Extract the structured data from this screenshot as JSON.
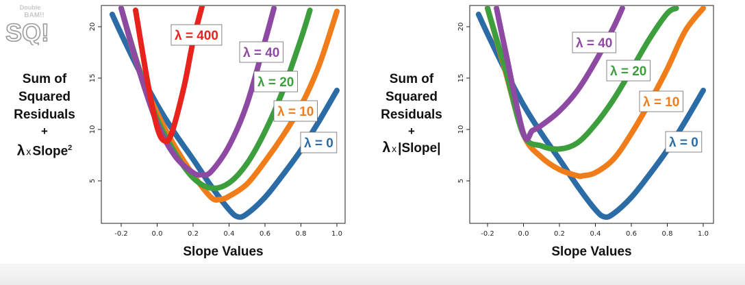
{
  "logo": {
    "line1": "Double",
    "line2": "BAM!!",
    "mark": "SQ!"
  },
  "panels": [
    {
      "ylabel": {
        "l1": "Sum of",
        "l2": "Squared",
        "l3": "Residuals",
        "plus": "+",
        "lambda": "λ",
        "times": "x",
        "slope": "Slope",
        "power": "2"
      }
    },
    {
      "ylabel": {
        "l1": "Sum of",
        "l2": "Squared",
        "l3": "Residuals",
        "plus": "+",
        "lambda": "λ",
        "times": "x",
        "slope": "|Slope|",
        "power": ""
      }
    }
  ],
  "chart_data": [
    {
      "type": "line",
      "penalty": "squared",
      "title": "",
      "xlabel": "Slope Values",
      "xlim": [
        -0.3,
        1.05
      ],
      "ylim": [
        0.5,
        21.5
      ],
      "xticks": [
        "-0.2",
        "0.0",
        "0.2",
        "0.4",
        "0.6",
        "0.8",
        "1.0"
      ],
      "yticks": [
        "5",
        "10",
        "15",
        "20"
      ],
      "series": [
        {
          "name": "λ = 0",
          "lambda": 0,
          "color": "#2b6ca6",
          "x": [
            -0.25,
            -0.2,
            -0.1,
            0,
            0.1,
            0.2,
            0.3,
            0.4,
            0.45,
            0.5,
            0.6,
            0.7,
            0.8,
            0.9,
            1.0
          ],
          "y": [
            21.2,
            19.3,
            15.7,
            12.4,
            9.6,
            7.1,
            4.5,
            2.2,
            1.5,
            1.8,
            3.4,
            5.6,
            8.0,
            10.8,
            13.8
          ]
        },
        {
          "name": "λ = 10",
          "lambda": 10,
          "color": "#f07d1a",
          "x": [
            -0.2,
            -0.1,
            0,
            0.1,
            0.2,
            0.3,
            0.35,
            0.4,
            0.5,
            0.6,
            0.7,
            0.8,
            0.9,
            1.0
          ],
          "y": [
            21.8,
            15.7,
            11.6,
            8.3,
            5.6,
            3.4,
            3.2,
            3.5,
            4.7,
            6.9,
            9.4,
            12.3,
            16.2,
            21.5
          ]
        },
        {
          "name": "λ = 20",
          "lambda": 20,
          "color": "#3c9e3c",
          "x": [
            -0.2,
            -0.1,
            0,
            0.1,
            0.2,
            0.3,
            0.4,
            0.5,
            0.6,
            0.7,
            0.8,
            0.85
          ],
          "y": [
            21.8,
            15.9,
            11.0,
            7.7,
            5.3,
            4.3,
            4.8,
            6.7,
            9.8,
            13.8,
            18.8,
            21.6
          ]
        },
        {
          "name": "λ = 40",
          "lambda": 40,
          "color": "#8e4aa3",
          "x": [
            -0.2,
            -0.1,
            0,
            0.1,
            0.2,
            0.25,
            0.3,
            0.4,
            0.5,
            0.6,
            0.65
          ],
          "y": [
            21.8,
            15.7,
            10.6,
            7.4,
            5.8,
            5.6,
            5.9,
            8.4,
            12.5,
            18.6,
            21.8
          ]
        },
        {
          "name": "λ = 400",
          "lambda": 400,
          "color": "#e8231e",
          "x": [
            -0.12,
            -0.05,
            0,
            0.04,
            0.08,
            0.15,
            0.2,
            0.25
          ],
          "y": [
            21.6,
            14.3,
            10.2,
            8.9,
            9.6,
            14.2,
            18.6,
            22.0
          ]
        }
      ]
    },
    {
      "type": "line",
      "penalty": "absolute",
      "title": "",
      "xlabel": "Slope Values",
      "xlim": [
        -0.3,
        1.05
      ],
      "ylim": [
        0.5,
        21.5
      ],
      "xticks": [
        "-0.2",
        "0.0",
        "0.2",
        "0.4",
        "0.6",
        "0.8",
        "1.0"
      ],
      "yticks": [
        "5",
        "10",
        "15",
        "20"
      ],
      "series": [
        {
          "name": "λ = 0",
          "lambda": 0,
          "color": "#2b6ca6",
          "x": [
            -0.25,
            -0.2,
            -0.1,
            0,
            0.1,
            0.2,
            0.3,
            0.4,
            0.45,
            0.5,
            0.6,
            0.7,
            0.8,
            0.9,
            1.0
          ],
          "y": [
            21.2,
            19.3,
            15.7,
            12.4,
            9.6,
            7.1,
            4.5,
            2.2,
            1.5,
            1.8,
            3.4,
            5.6,
            8.0,
            10.8,
            13.8
          ]
        },
        {
          "name": "λ = 10",
          "lambda": 10,
          "color": "#f07d1a",
          "x": [
            -0.2,
            -0.1,
            0,
            0.1,
            0.2,
            0.3,
            0.33,
            0.4,
            0.5,
            0.6,
            0.7,
            0.8,
            0.9,
            1.0
          ],
          "y": [
            21.8,
            15.6,
            9.5,
            7.3,
            6.1,
            5.5,
            5.5,
            5.8,
            7.1,
            9.6,
            12.6,
            15.9,
            19.6,
            21.8
          ]
        },
        {
          "name": "λ = 20",
          "lambda": 20,
          "color": "#3c9e3c",
          "x": [
            -0.2,
            -0.1,
            0,
            0.1,
            0.2,
            0.3,
            0.4,
            0.5,
            0.6,
            0.7,
            0.8,
            0.85
          ],
          "y": [
            21.8,
            15.8,
            9.5,
            8.4,
            8.1,
            8.7,
            10.5,
            12.9,
            15.8,
            18.8,
            21.3,
            21.8
          ]
        },
        {
          "name": "λ = 40",
          "lambda": 40,
          "color": "#8e4aa3",
          "x": [
            -0.15,
            -0.1,
            0,
            0.05,
            0.1,
            0.2,
            0.3,
            0.4,
            0.5,
            0.55
          ],
          "y": [
            21.8,
            17.6,
            9.6,
            9.9,
            10.4,
            11.8,
            13.8,
            16.6,
            19.9,
            21.8
          ]
        }
      ]
    }
  ]
}
